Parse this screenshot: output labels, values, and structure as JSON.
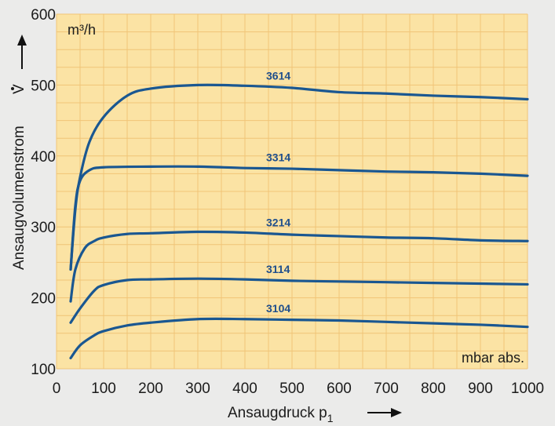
{
  "chart_data": {
    "type": "line",
    "unit_top": "m³/h",
    "unit_bottom": "mbar abs.",
    "xlabel": "Ansaugdruck p",
    "xlabel_sub": "1",
    "ylabel": "Ansaugvolumenstrom",
    "ylabel_symbol": "V",
    "xlim": [
      0,
      1000
    ],
    "ylim": [
      100,
      600
    ],
    "grid": true,
    "x_ticks": [
      "0",
      "100",
      "200",
      "300",
      "400",
      "500",
      "600",
      "700",
      "800",
      "900",
      "1000"
    ],
    "y_ticks": [
      "100",
      "200",
      "300",
      "400",
      "500",
      "600"
    ],
    "series": [
      {
        "name": "3614",
        "label_x": 445,
        "points": [
          [
            30,
            240
          ],
          [
            40,
            325
          ],
          [
            50,
            370
          ],
          [
            70,
            420
          ],
          [
            100,
            455
          ],
          [
            150,
            485
          ],
          [
            200,
            495
          ],
          [
            300,
            500
          ],
          [
            400,
            499
          ],
          [
            500,
            496
          ],
          [
            600,
            490
          ],
          [
            700,
            488
          ],
          [
            800,
            485
          ],
          [
            900,
            483
          ],
          [
            1000,
            480
          ]
        ]
      },
      {
        "name": "3314",
        "label_x": 445,
        "points": [
          [
            30,
            240
          ],
          [
            40,
            330
          ],
          [
            50,
            365
          ],
          [
            70,
            380
          ],
          [
            100,
            384
          ],
          [
            200,
            385
          ],
          [
            300,
            385
          ],
          [
            400,
            383
          ],
          [
            500,
            382
          ],
          [
            600,
            380
          ],
          [
            700,
            378
          ],
          [
            800,
            377
          ],
          [
            900,
            375
          ],
          [
            1000,
            372
          ]
        ]
      },
      {
        "name": "3214",
        "label_x": 445,
        "points": [
          [
            30,
            195
          ],
          [
            40,
            240
          ],
          [
            60,
            270
          ],
          [
            80,
            280
          ],
          [
            100,
            285
          ],
          [
            150,
            290
          ],
          [
            200,
            291
          ],
          [
            300,
            293
          ],
          [
            400,
            292
          ],
          [
            500,
            289
          ],
          [
            600,
            287
          ],
          [
            700,
            285
          ],
          [
            800,
            284
          ],
          [
            900,
            281
          ],
          [
            1000,
            280
          ]
        ]
      },
      {
        "name": "3114",
        "label_x": 445,
        "points": [
          [
            30,
            165
          ],
          [
            50,
            185
          ],
          [
            80,
            210
          ],
          [
            100,
            218
          ],
          [
            150,
            225
          ],
          [
            200,
            226
          ],
          [
            300,
            227
          ],
          [
            400,
            226
          ],
          [
            500,
            224
          ],
          [
            600,
            223
          ],
          [
            700,
            222
          ],
          [
            800,
            221
          ],
          [
            900,
            220
          ],
          [
            1000,
            219
          ]
        ]
      },
      {
        "name": "3104",
        "label_x": 445,
        "points": [
          [
            30,
            115
          ],
          [
            50,
            133
          ],
          [
            80,
            147
          ],
          [
            100,
            153
          ],
          [
            150,
            161
          ],
          [
            200,
            165
          ],
          [
            300,
            170
          ],
          [
            400,
            170
          ],
          [
            500,
            169
          ],
          [
            600,
            168
          ],
          [
            700,
            166
          ],
          [
            800,
            164
          ],
          [
            900,
            162
          ],
          [
            1000,
            159
          ]
        ]
      }
    ]
  },
  "colors": {
    "plot_background": "#fbe3a4",
    "grid": "#f0c477",
    "curve": "#1a5791",
    "series_label": "#1f4f8c",
    "page_background": "#ebebea",
    "text": "#1b1b1b"
  }
}
